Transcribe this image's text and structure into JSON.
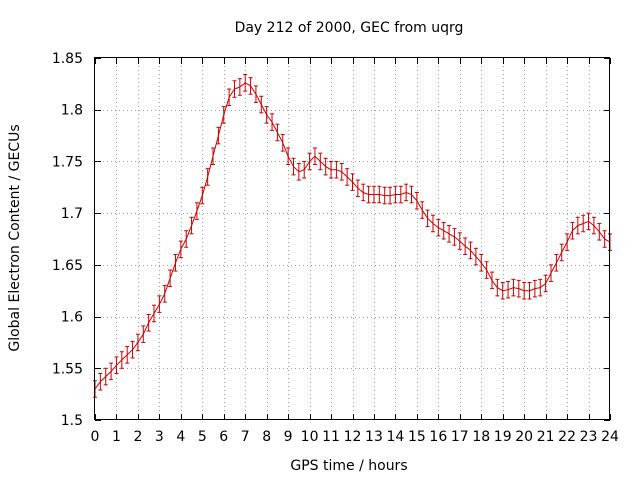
{
  "chart_data": {
    "type": "line",
    "title": "Day 212 of 2000, GEC from uqrg",
    "xlabel": "GPS time / hours",
    "ylabel": "Global Electron Content / GECUs",
    "xlim": [
      0,
      24
    ],
    "ylim": [
      1.5,
      1.85
    ],
    "grid": true,
    "x_ticks": [
      0,
      1,
      2,
      3,
      4,
      5,
      6,
      7,
      8,
      9,
      10,
      11,
      12,
      13,
      14,
      15,
      16,
      17,
      18,
      19,
      20,
      21,
      22,
      23,
      24
    ],
    "y_ticks": [
      1.5,
      1.55,
      1.6,
      1.65,
      1.7,
      1.75,
      1.8,
      1.85
    ],
    "y_tick_labels": [
      "1.5",
      "1.55",
      "1.6",
      "1.65",
      "1.7",
      "1.75",
      "1.8",
      "1.85"
    ],
    "series_color": "#cc0000",
    "error": 0.008,
    "series": [
      {
        "name": "GEC",
        "x": [
          0,
          0.25,
          0.5,
          0.75,
          1,
          1.25,
          1.5,
          1.75,
          2,
          2.25,
          2.5,
          2.75,
          3,
          3.25,
          3.5,
          3.75,
          4,
          4.25,
          4.5,
          4.75,
          5,
          5.25,
          5.5,
          5.75,
          6,
          6.25,
          6.5,
          6.75,
          7,
          7.25,
          7.5,
          7.75,
          8,
          8.25,
          8.5,
          8.75,
          9,
          9.25,
          9.5,
          9.75,
          10,
          10.25,
          10.5,
          10.75,
          11,
          11.25,
          11.5,
          11.75,
          12,
          12.25,
          12.5,
          12.75,
          13,
          13.25,
          13.5,
          13.75,
          14,
          14.25,
          14.5,
          14.75,
          15,
          15.25,
          15.5,
          15.75,
          16,
          16.25,
          16.5,
          16.75,
          17,
          17.25,
          17.5,
          17.75,
          18,
          18.25,
          18.5,
          18.75,
          19,
          19.25,
          19.5,
          19.75,
          20,
          20.25,
          20.5,
          20.75,
          21,
          21.25,
          21.5,
          21.75,
          22,
          22.25,
          22.5,
          22.75,
          23,
          23.25,
          23.5,
          23.75,
          24
        ],
        "y": [
          1.53,
          1.537,
          1.542,
          1.547,
          1.553,
          1.558,
          1.563,
          1.568,
          1.575,
          1.583,
          1.594,
          1.603,
          1.612,
          1.622,
          1.637,
          1.652,
          1.665,
          1.675,
          1.688,
          1.702,
          1.717,
          1.735,
          1.755,
          1.775,
          1.795,
          1.812,
          1.82,
          1.822,
          1.826,
          1.823,
          1.815,
          1.805,
          1.795,
          1.788,
          1.778,
          1.768,
          1.755,
          1.745,
          1.74,
          1.742,
          1.75,
          1.755,
          1.75,
          1.745,
          1.742,
          1.742,
          1.74,
          1.735,
          1.73,
          1.724,
          1.72,
          1.718,
          1.718,
          1.718,
          1.717,
          1.717,
          1.718,
          1.718,
          1.72,
          1.718,
          1.712,
          1.703,
          1.695,
          1.69,
          1.686,
          1.683,
          1.68,
          1.677,
          1.673,
          1.668,
          1.664,
          1.658,
          1.652,
          1.645,
          1.635,
          1.628,
          1.625,
          1.626,
          1.628,
          1.627,
          1.625,
          1.625,
          1.627,
          1.628,
          1.632,
          1.642,
          1.652,
          1.662,
          1.672,
          1.683,
          1.688,
          1.69,
          1.692,
          1.688,
          1.682,
          1.675,
          1.672
        ]
      }
    ]
  }
}
